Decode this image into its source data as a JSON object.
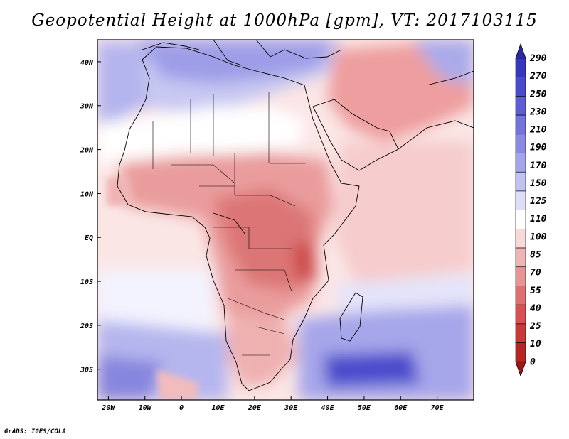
{
  "title": "Geopotential Height at 1000hPa [gpm], VT: 2017103115",
  "credit": "GrADS: IGES/COLA",
  "map": {
    "lon_range": [
      -23,
      80
    ],
    "lat_range": [
      -37,
      45
    ],
    "x_ticks": [
      {
        "lon": -20,
        "label": "20W"
      },
      {
        "lon": -10,
        "label": "10W"
      },
      {
        "lon": 0,
        "label": "0"
      },
      {
        "lon": 10,
        "label": "10E"
      },
      {
        "lon": 20,
        "label": "20E"
      },
      {
        "lon": 30,
        "label": "30E"
      },
      {
        "lon": 40,
        "label": "40E"
      },
      {
        "lon": 50,
        "label": "50E"
      },
      {
        "lon": 60,
        "label": "60E"
      },
      {
        "lon": 70,
        "label": "70E"
      }
    ],
    "y_ticks": [
      {
        "lat": 40,
        "label": "40N"
      },
      {
        "lat": 30,
        "label": "30N"
      },
      {
        "lat": 20,
        "label": "20N"
      },
      {
        "lat": 10,
        "label": "10N"
      },
      {
        "lat": 0,
        "label": "EQ"
      },
      {
        "lat": -10,
        "label": "10S"
      },
      {
        "lat": -20,
        "label": "20S"
      },
      {
        "lat": -30,
        "label": "30S"
      }
    ]
  },
  "colorbar": {
    "levels": [
      "290",
      "270",
      "250",
      "230",
      "210",
      "190",
      "170",
      "150",
      "125",
      "110",
      "100",
      "85",
      "70",
      "55",
      "40",
      "25",
      "10",
      "0"
    ],
    "colors": [
      "#2a2aa8",
      "#3737bd",
      "#4a4acc",
      "#5d5dd6",
      "#7373dd",
      "#8a8ae4",
      "#a4a4ea",
      "#c2c2f2",
      "#dedef9",
      "#ffffff",
      "#f8d8d8",
      "#f0b4b4",
      "#e89494",
      "#df7070",
      "#d85050",
      "#cc3838",
      "#b82424",
      "#a01616"
    ]
  },
  "colors": {
    "land_outline": "#000000",
    "neutral": "#ffffff"
  }
}
